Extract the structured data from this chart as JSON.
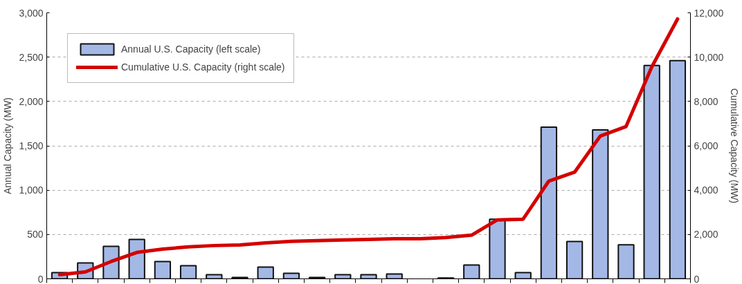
{
  "chart_data": {
    "type": "bar",
    "ylabel": "Annual Capacity (MW)",
    "y2label": "Cumulative Capacity (MW)",
    "categories": [
      null,
      null,
      null,
      null,
      null,
      null,
      null,
      null,
      null,
      null,
      null,
      null,
      null,
      null,
      null,
      null,
      null,
      null,
      null,
      null,
      null,
      null,
      null,
      null,
      null
    ],
    "series": [
      {
        "name": "Annual U.S. Capacity (left scale)",
        "color": "#a4b8e6",
        "values": [
          70,
          180,
          367,
          445,
          195,
          148,
          47,
          16,
          133,
          62,
          15,
          47,
          47,
          55,
          null,
          10,
          156,
          672,
          70,
          1710,
          420,
          1680,
          383,
          2405,
          2460
        ]
      },
      {
        "name": "Cumulative U.S. Capacity (right scale)",
        "type": "line",
        "axis": "y2",
        "color": "#d40000",
        "values": [
          190,
          310,
          780,
          1190,
          1340,
          1440,
          1500,
          1530,
          1620,
          1690,
          1720,
          1750,
          1780,
          1810,
          1810,
          1860,
          1970,
          2660,
          2690,
          4410,
          4810,
          6440,
          6870,
          9560,
          11720
        ]
      }
    ],
    "ylim": [
      0,
      3000
    ],
    "yticks": [
      {
        "value": 0,
        "label": "0"
      },
      {
        "value": 500,
        "label": "500"
      },
      {
        "value": 1000,
        "label": "1,000"
      },
      {
        "value": 1500,
        "label": "1,500"
      },
      {
        "value": 2000,
        "label": "2,000"
      },
      {
        "value": 2500,
        "label": "2,500"
      },
      {
        "value": 3000,
        "label": "3,000"
      }
    ],
    "y2lim": [
      0,
      12000
    ],
    "y2ticks": [
      {
        "value": 0,
        "label": "0"
      },
      {
        "value": 2000,
        "label": "2,000"
      },
      {
        "value": 4000,
        "label": "4,000"
      },
      {
        "value": 6000,
        "label": "6,000"
      },
      {
        "value": 8000,
        "label": "8,000"
      },
      {
        "value": 10000,
        "label": "10,000"
      },
      {
        "value": 12000,
        "label": "12,000"
      }
    ],
    "grid": "y",
    "legend": "top left",
    "tick_labels": "y"
  }
}
